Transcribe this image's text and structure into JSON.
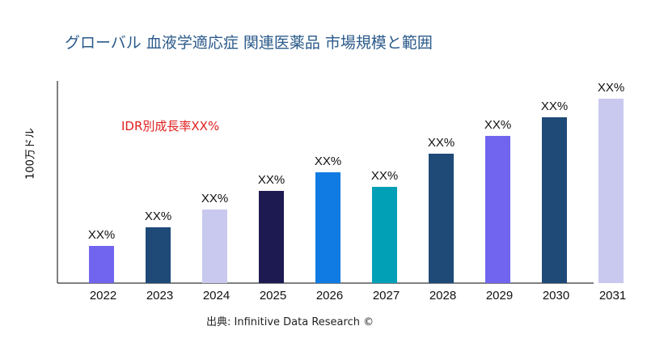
{
  "title": "グローバル 血液学適応症 関連医薬品 市場規模と範囲",
  "source": "出典: Infinitive Data Research ©",
  "chart_data": {
    "type": "bar",
    "title": "グローバル 血液学適応症 関連医薬品 市場規模と範囲",
    "xlabel": "",
    "ylabel": "100万ドル",
    "annotation": "IDR別成長率XX%",
    "categories": [
      "2022",
      "2023",
      "2024",
      "2025",
      "2026",
      "2027",
      "2028",
      "2029",
      "2030",
      "2031"
    ],
    "values": [
      46,
      69,
      91,
      114,
      137,
      119,
      160,
      182,
      205,
      228
    ],
    "data_labels": [
      "XX%",
      "XX%",
      "XX%",
      "XX%",
      "XX%",
      "XX%",
      "XX%",
      "XX%",
      "XX%",
      "XX%"
    ],
    "colors": [
      "#7165ef",
      "#1f4a78",
      "#c9c9ef",
      "#1d1a52",
      "#0f7be3",
      "#01a0b7",
      "#1f4a78",
      "#7165ef",
      "#1f4a78",
      "#c9c9ef"
    ],
    "ylim": [
      0,
      250
    ],
    "grid": false,
    "legend": "none"
  }
}
